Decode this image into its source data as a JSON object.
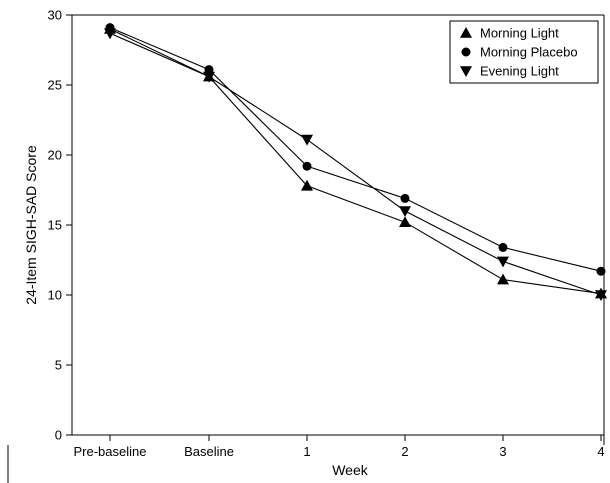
{
  "chart_data": {
    "type": "line",
    "title": "",
    "xlabel": "Week",
    "ylabel": "24-Item SIGH-SAD Score",
    "categories": [
      "Pre-baseline",
      "Baseline",
      "1",
      "2",
      "3",
      "4"
    ],
    "ylim": [
      0,
      30
    ],
    "yticks": [
      0,
      5,
      10,
      15,
      20,
      25,
      30
    ],
    "grid": false,
    "legend_position": "top-right",
    "series": [
      {
        "name": "Morning Light",
        "marker": "triangle-up",
        "color": "#000000",
        "values": [
          29.0,
          25.6,
          17.8,
          15.2,
          11.1,
          10.1
        ]
      },
      {
        "name": "Morning Placebo",
        "marker": "circle",
        "color": "#000000",
        "values": [
          29.1,
          26.1,
          19.2,
          16.9,
          13.4,
          11.7
        ]
      },
      {
        "name": "Evening Light",
        "marker": "triangle-down",
        "color": "#000000",
        "values": [
          28.7,
          25.6,
          21.1,
          16.0,
          12.4,
          10.0
        ]
      }
    ]
  }
}
